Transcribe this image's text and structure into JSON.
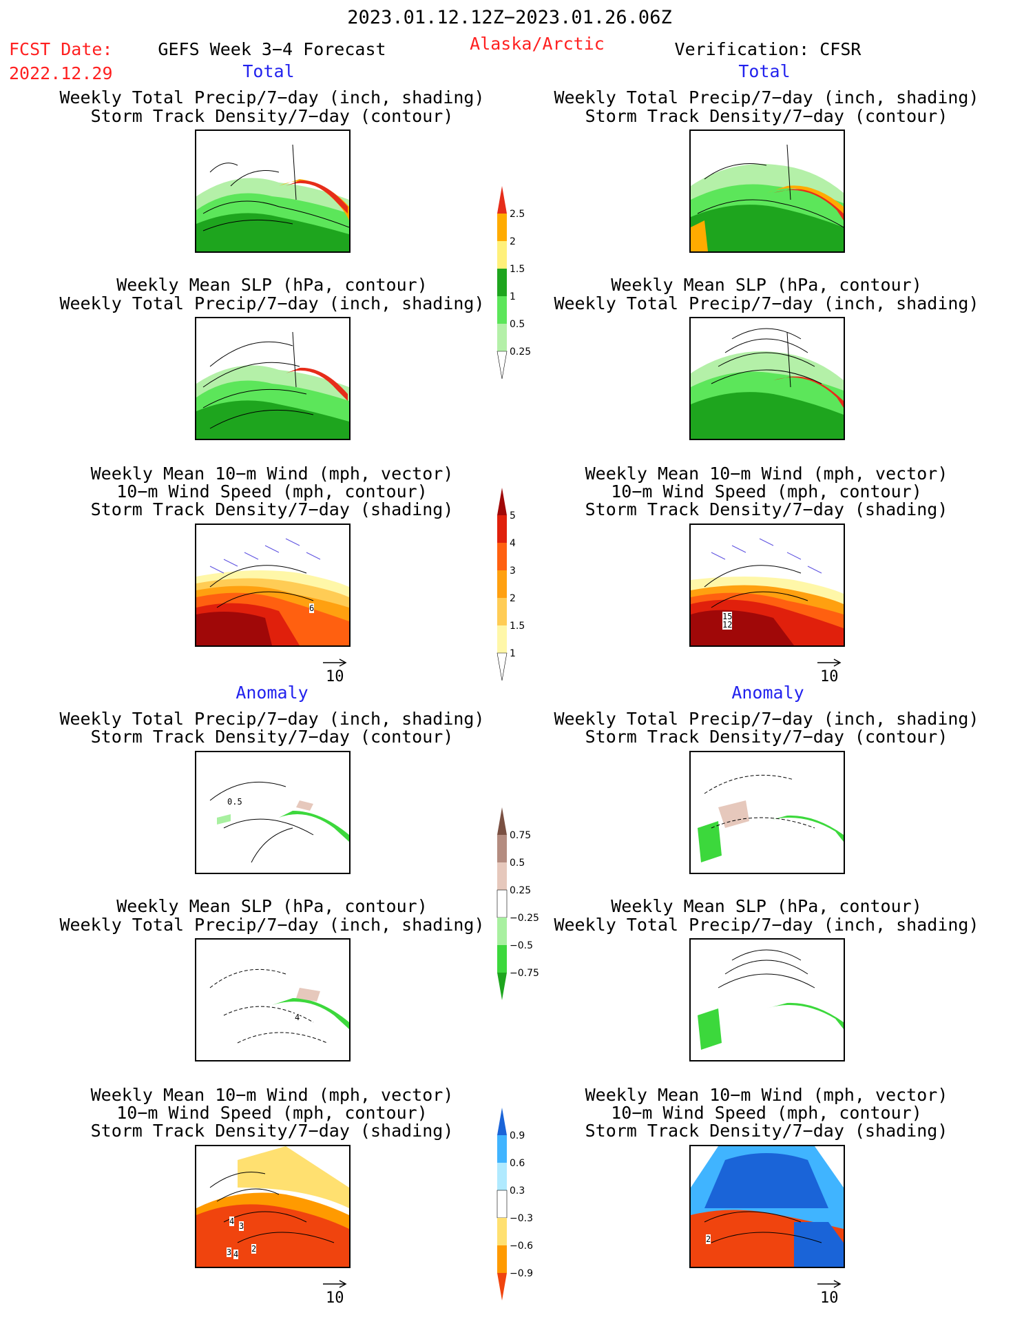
{
  "header": {
    "date_range": "2023.01.12.12Z−2023.01.26.06Z",
    "fcst_label": "FCST Date:",
    "fcst_date": "2022.12.29",
    "product": "GEFS Week 3−4 Forecast",
    "region": "Alaska/Arctic",
    "verification": "Verification: CFSR"
  },
  "sections": {
    "total": "Total",
    "anomaly": "Anomaly"
  },
  "panel_titles": {
    "precip_storm": [
      "Weekly Total Precip/7−day (inch, shading)",
      "Storm Track Density/7−day (contour)"
    ],
    "slp_precip": [
      "Weekly Mean SLP (hPa, contour)",
      "Weekly Total Precip/7−day (inch, shading)"
    ],
    "wind_storm": [
      "Weekly Mean 10−m Wind (mph, vector)",
      "10−m Wind Speed (mph, contour)",
      "Storm Track Density/7−day (shading)"
    ]
  },
  "reference_vector": "10",
  "map_labels": {
    "total_forecast_wind": "6",
    "total_verif_wind": [
      "15",
      "12"
    ],
    "anom_forecast_precip": "0.5",
    "anom_forecast_slp": "4",
    "anom_forecast_wind": [
      "4",
      "3",
      "3",
      "4",
      "2"
    ],
    "anom_verif_wind": "2"
  },
  "colorbars": {
    "total_precip": {
      "ticks": [
        "0.25",
        "0.5",
        "1",
        "1.5",
        "2",
        "2.5"
      ],
      "colors": [
        "#ffffff",
        "#b4f0a8",
        "#5ce65a",
        "#1ea51e",
        "#fff07a",
        "#ffab00",
        "#e62d1a"
      ]
    },
    "total_storm": {
      "ticks": [
        "1",
        "1.5",
        "2",
        "3",
        "4",
        "5"
      ],
      "colors": [
        "#ffffff",
        "#fff7a8",
        "#ffcc55",
        "#ffa010",
        "#ff6010",
        "#e0200c",
        "#a00808"
      ]
    },
    "anom_precip": {
      "ticks": [
        "0.75",
        "0.5",
        "0.25",
        "−0.25",
        "−0.5",
        "−0.75"
      ],
      "colors": [
        "#1ea51e",
        "#3cd83c",
        "#a8f0a0",
        "#ffffff",
        "#e6c8bc",
        "#b48c80",
        "#7a5042"
      ]
    },
    "anom_storm": {
      "ticks": [
        "0.9",
        "0.6",
        "0.3",
        "−0.3",
        "−0.6",
        "−0.9"
      ],
      "colors": [
        "#f0440e",
        "#ff9a00",
        "#ffe070",
        "#ffffff",
        "#b0eaff",
        "#40b4ff",
        "#1a64d8"
      ]
    }
  }
}
